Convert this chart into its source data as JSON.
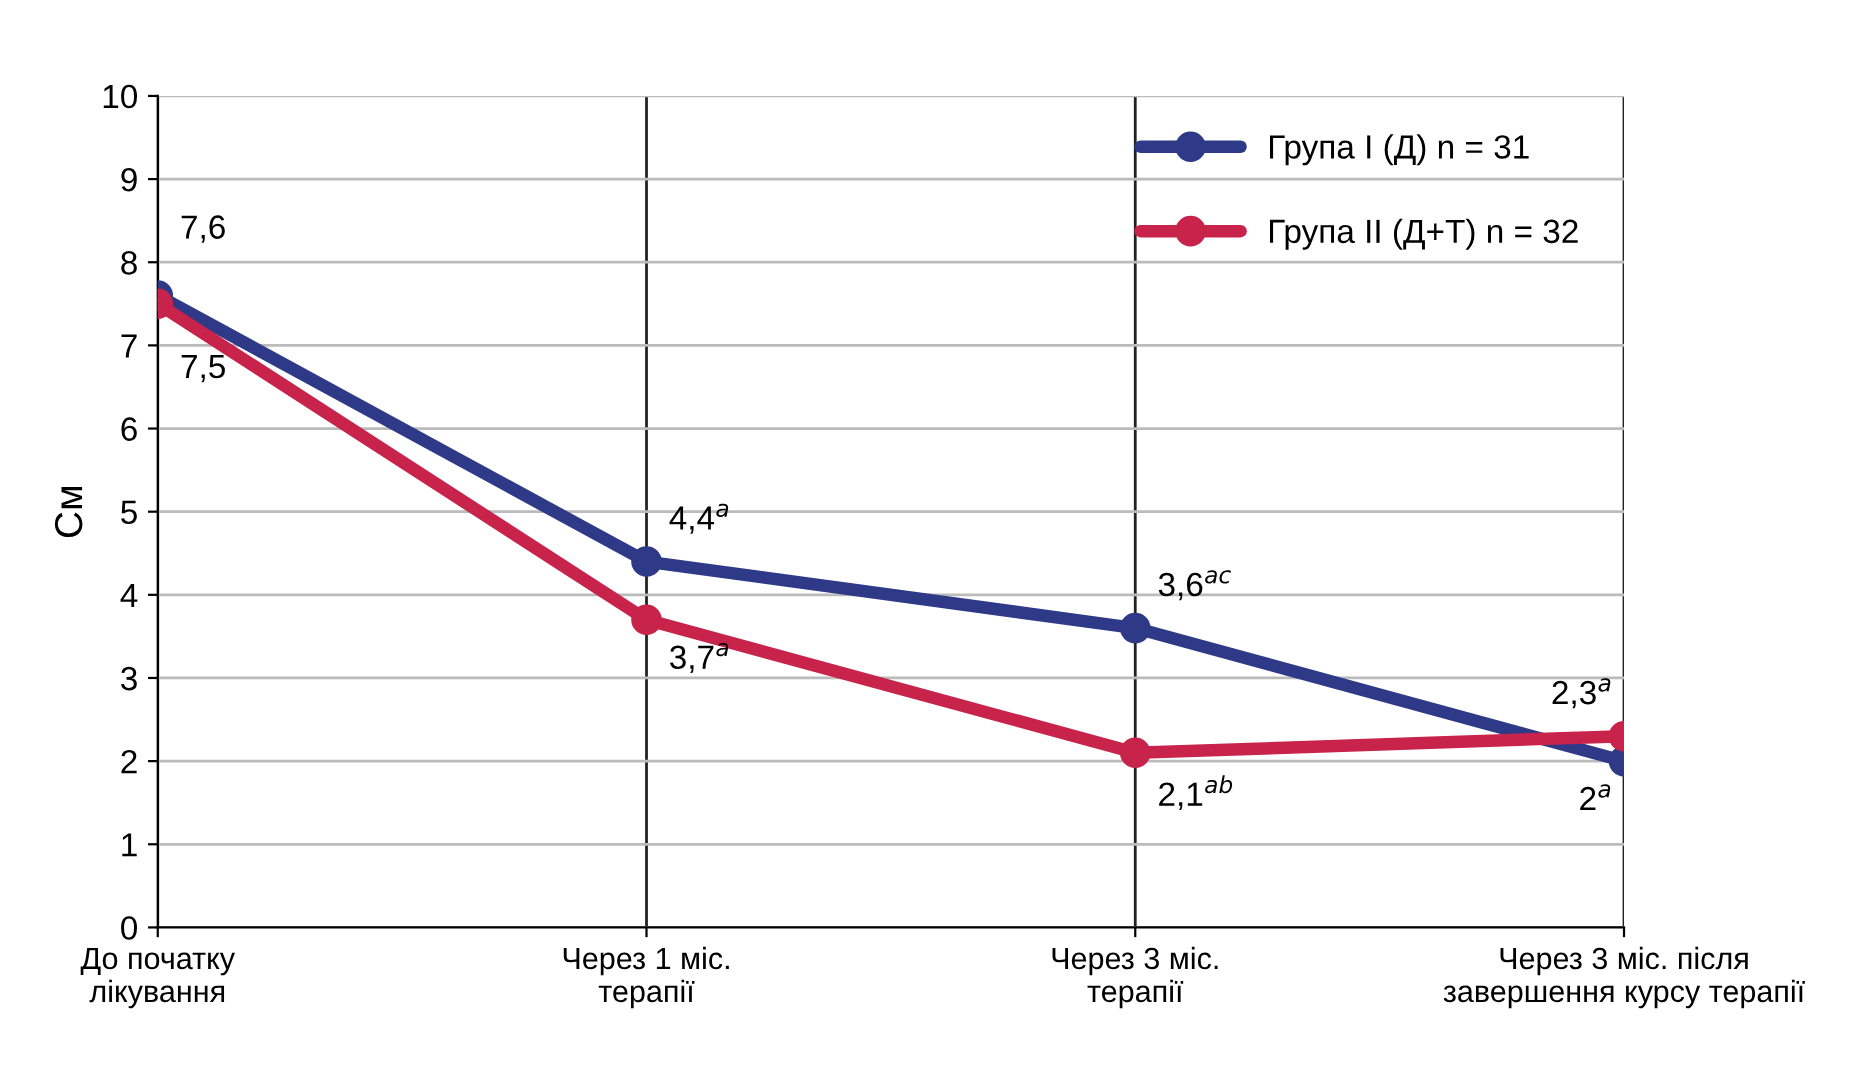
{
  "chart_data": {
    "type": "line",
    "ylabel": "См",
    "categories": [
      "До початку\nлікування",
      "Через 1 міс.\nтерапії",
      "Через 3 міс.\nтерапії",
      "Через 3 міс. після\nзавершення курсу терапії"
    ],
    "series": [
      {
        "name": "Група I (Д) n = 31",
        "color": "#2e3a87",
        "values": [
          7.6,
          4.4,
          3.6,
          2
        ],
        "value_labels": [
          "7,6",
          "4,4$^{a}$",
          "3,6$^{ac}$",
          "2$^{a}$"
        ]
      },
      {
        "name": "Група II (Д+Т) n = 32",
        "color": "#c8234a",
        "values": [
          7.5,
          3.7,
          2.1,
          2.3
        ],
        "value_labels": [
          "7,5",
          "3,7$^{a}$",
          "2,1$^{ab}$",
          "2,3$^{a}$"
        ]
      }
    ],
    "ylim": [
      0,
      10
    ],
    "yticks": [
      0,
      1,
      2,
      3,
      4,
      5,
      6,
      7,
      8,
      9,
      10
    ],
    "grid": true,
    "legend": "top right",
    "marker": "circle",
    "line_style": "solid"
  }
}
